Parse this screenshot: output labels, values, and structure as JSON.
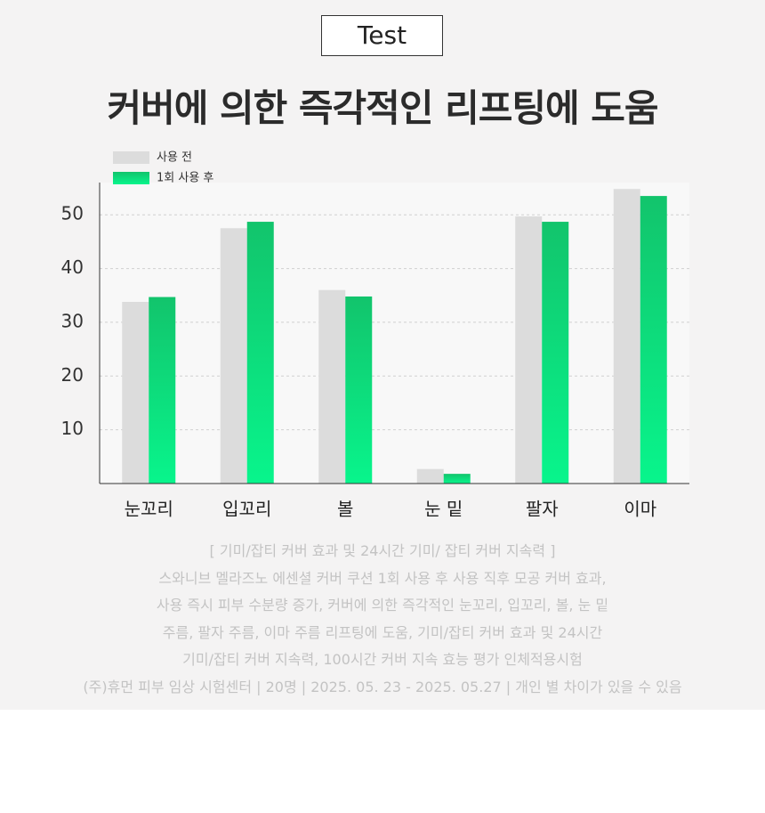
{
  "badge": "Test",
  "chart_data": {
    "type": "bar",
    "title": "커버에 의한 즉각적인 리프팅에 도움",
    "categories": [
      "눈꼬리",
      "입꼬리",
      "볼",
      "눈 밑",
      "팔자",
      "이마"
    ],
    "series": [
      {
        "name": "사용 전",
        "color": "#dcdcdc",
        "values": [
          33.8,
          47.5,
          36,
          2.7,
          49.7,
          54.8
        ]
      },
      {
        "name": "1회 사용 후",
        "color": "#12c46c",
        "values": [
          34.7,
          48.7,
          34.8,
          1.8,
          48.7,
          53.5
        ]
      }
    ],
    "ylim": [
      0,
      56
    ],
    "yticks": [
      10,
      20,
      30,
      40,
      50
    ],
    "grid": true,
    "legend": "top-left"
  },
  "notes": [
    "[ 기미/잡티 커버 효과 및 24시간 기미/ 잡티 커버 지속력 ]",
    "스와니브 멜라즈노 에센셜 커버 쿠션 1회 사용 후 사용 직후 모공 커버 효과,",
    "사용 즉시 피부 수분량 증가, 커버에 의한 즉각적인 눈꼬리, 입꼬리, 볼, 눈 밑",
    "주름, 팔자 주름, 이마 주름 리프팅에 도움, 기미/잡티 커버 효과 및 24시간",
    "기미/잡티 커버 지속력, 100시간 커버 지속 효능 평가 인체적용시험",
    "(주)휴먼 피부 임상 시험센터 | 20명 | 2025. 05. 23 - 2025. 05.27 | 개인 별 차이가 있을 수 있음"
  ]
}
